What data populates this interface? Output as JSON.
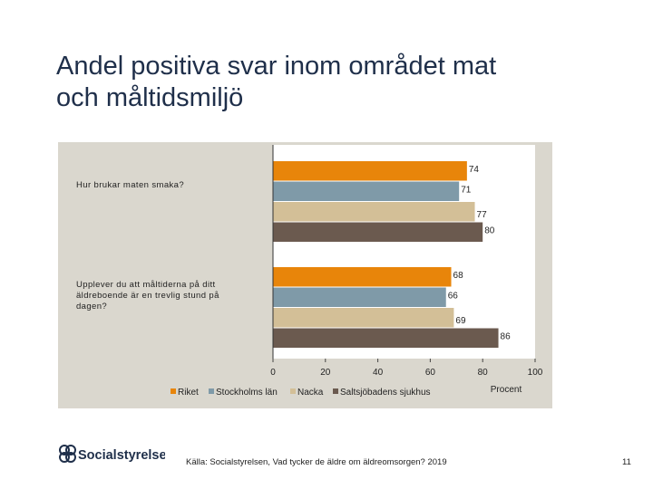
{
  "slide": {
    "title_line1": "Andel positiva svar inom området mat",
    "title_line2": "och måltidsmiljö",
    "source": "Källa: Socialstyrelsen, Vad tycker de äldre om äldreomsorgen? 2019",
    "page_number": "11",
    "logo_text": "Socialstyrelsen"
  },
  "chart_data": {
    "type": "bar",
    "orientation": "horizontal",
    "categories": [
      "Hur brukar maten smaka?",
      "Upplever du att måltiderna på ditt äldreboende är en trevlig stund på dagen?"
    ],
    "series": [
      {
        "name": "Riket",
        "values": [
          74,
          68
        ],
        "color": "#e8850a"
      },
      {
        "name": "Stockholms län",
        "values": [
          71,
          66
        ],
        "color": "#7f9aa8"
      },
      {
        "name": "Nacka",
        "values": [
          77,
          69
        ],
        "color": "#d3bf97"
      },
      {
        "name": "Saltsjöbadens sjukhus",
        "values": [
          80,
          86
        ],
        "color": "#6b5a4f"
      }
    ],
    "xlabel": "Procent",
    "xlim": [
      0,
      100
    ],
    "xticks": [
      "0",
      "20",
      "40",
      "60",
      "80",
      "100"
    ],
    "legend_position": "bottom",
    "background": "#dad7ce"
  }
}
